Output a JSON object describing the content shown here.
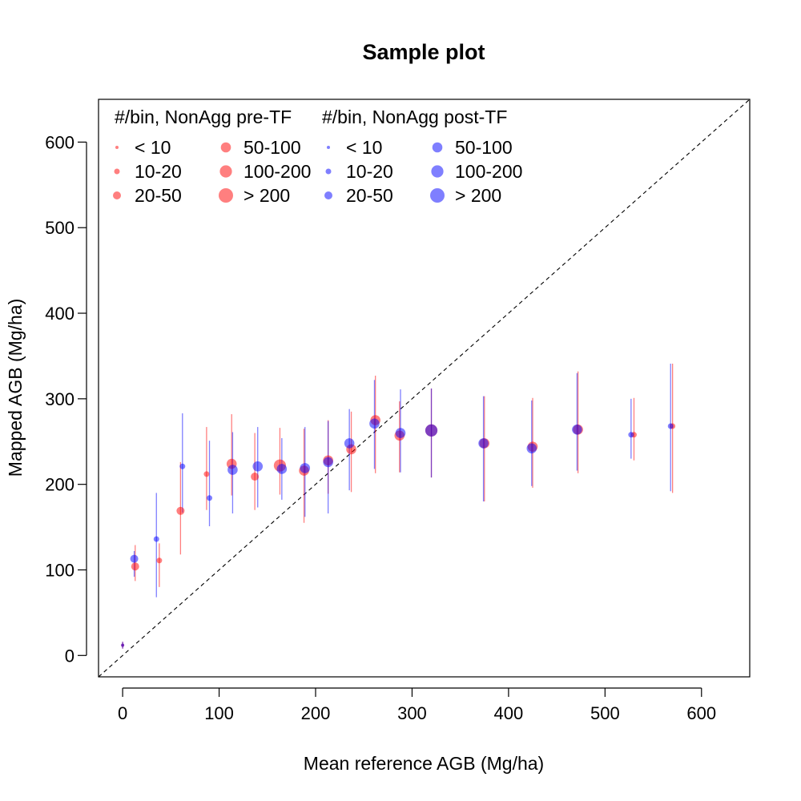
{
  "chart_data": {
    "type": "scatter",
    "title": "Sample plot",
    "xlabel": "Mean reference AGB (Mg/ha)",
    "ylabel": "Mapped AGB (Mg/ha)",
    "xlim": [
      -25,
      650
    ],
    "ylim": [
      -25,
      650
    ],
    "xticks": [
      0,
      100,
      200,
      300,
      400,
      500,
      600
    ],
    "yticks": [
      0,
      100,
      200,
      300,
      400,
      500,
      600
    ],
    "xtick_labels": [
      "0",
      "100",
      "200",
      "300",
      "400",
      "500",
      "600"
    ],
    "ytick_labels": [
      "0",
      "100",
      "200",
      "300",
      "400",
      "500",
      "600"
    ],
    "grid": false,
    "reference_line": "1:1 dashed",
    "colors": {
      "pre": "#ff000080",
      "post": "#0000ff80"
    },
    "legend": {
      "placement": "top-left",
      "groups": [
        {
          "title": "#/bin, NonAgg pre-TF",
          "color": "pre",
          "items": [
            "< 10",
            "10-20",
            "20-50",
            "50-100",
            "100-200",
            "> 200"
          ]
        },
        {
          "title": "#/bin, NonAgg post-TF",
          "color": "post",
          "items": [
            "< 10",
            "10-20",
            "20-50",
            "50-100",
            "100-200",
            "> 200"
          ]
        }
      ]
    },
    "series": [
      {
        "color": "pre",
        "points": [
          {
            "x": 0,
            "y": 12,
            "lo": 8,
            "hi": 16,
            "bin": 0
          },
          {
            "x": 13,
            "y": 104,
            "lo": 87,
            "hi": 129,
            "bin": 2
          },
          {
            "x": 38,
            "y": 111,
            "lo": 80,
            "hi": 131,
            "bin": 1
          },
          {
            "x": 60,
            "y": 169,
            "lo": 118,
            "hi": 226,
            "bin": 2
          },
          {
            "x": 87,
            "y": 212,
            "lo": 170,
            "hi": 267,
            "bin": 1
          },
          {
            "x": 113,
            "y": 224,
            "lo": 187,
            "hi": 282,
            "bin": 3
          },
          {
            "x": 137,
            "y": 209,
            "lo": 170,
            "hi": 260,
            "bin": 2
          },
          {
            "x": 163,
            "y": 222,
            "lo": 188,
            "hi": 266,
            "bin": 4
          },
          {
            "x": 188,
            "y": 216,
            "lo": 155,
            "hi": 265,
            "bin": 3
          },
          {
            "x": 213,
            "y": 228,
            "lo": 189,
            "hi": 275,
            "bin": 3
          },
          {
            "x": 237,
            "y": 241,
            "lo": 191,
            "hi": 285,
            "bin": 3
          },
          {
            "x": 262,
            "y": 275,
            "lo": 213,
            "hi": 327,
            "bin": 3
          },
          {
            "x": 287,
            "y": 257,
            "lo": 214,
            "hi": 297,
            "bin": 3
          },
          {
            "x": 320,
            "y": 263,
            "lo": 208,
            "hi": 312,
            "bin": 4
          },
          {
            "x": 375,
            "y": 248,
            "lo": 180,
            "hi": 303,
            "bin": 3
          },
          {
            "x": 425,
            "y": 244,
            "lo": 196,
            "hi": 301,
            "bin": 3
          },
          {
            "x": 472,
            "y": 264,
            "lo": 213,
            "hi": 332,
            "bin": 3
          },
          {
            "x": 530,
            "y": 258,
            "lo": 228,
            "hi": 301,
            "bin": 1
          },
          {
            "x": 570,
            "y": 268,
            "lo": 190,
            "hi": 341,
            "bin": 1
          }
        ]
      },
      {
        "color": "post",
        "points": [
          {
            "x": 0,
            "y": 12,
            "lo": 8,
            "hi": 16,
            "bin": 0
          },
          {
            "x": 12,
            "y": 113,
            "lo": 92,
            "hi": 122,
            "bin": 2
          },
          {
            "x": 35,
            "y": 136,
            "lo": 68,
            "hi": 190,
            "bin": 1
          },
          {
            "x": 62,
            "y": 221,
            "lo": 167,
            "hi": 283,
            "bin": 1
          },
          {
            "x": 90,
            "y": 184,
            "lo": 151,
            "hi": 251,
            "bin": 1
          },
          {
            "x": 114,
            "y": 217,
            "lo": 166,
            "hi": 261,
            "bin": 3
          },
          {
            "x": 140,
            "y": 221,
            "lo": 173,
            "hi": 267,
            "bin": 3
          },
          {
            "x": 165,
            "y": 218,
            "lo": 182,
            "hi": 254,
            "bin": 3
          },
          {
            "x": 189,
            "y": 219,
            "lo": 162,
            "hi": 267,
            "bin": 3
          },
          {
            "x": 213,
            "y": 226,
            "lo": 166,
            "hi": 274,
            "bin": 3
          },
          {
            "x": 235,
            "y": 248,
            "lo": 193,
            "hi": 288,
            "bin": 3
          },
          {
            "x": 261,
            "y": 271,
            "lo": 218,
            "hi": 322,
            "bin": 3
          },
          {
            "x": 288,
            "y": 260,
            "lo": 214,
            "hi": 311,
            "bin": 3
          },
          {
            "x": 320,
            "y": 263,
            "lo": 208,
            "hi": 312,
            "bin": 4
          },
          {
            "x": 374,
            "y": 248,
            "lo": 180,
            "hi": 303,
            "bin": 3
          },
          {
            "x": 424,
            "y": 242,
            "lo": 198,
            "hi": 298,
            "bin": 3
          },
          {
            "x": 471,
            "y": 264,
            "lo": 216,
            "hi": 330,
            "bin": 3
          },
          {
            "x": 527,
            "y": 258,
            "lo": 230,
            "hi": 300,
            "bin": 1
          },
          {
            "x": 568,
            "y": 268,
            "lo": 192,
            "hi": 341,
            "bin": 1
          }
        ]
      }
    ]
  }
}
